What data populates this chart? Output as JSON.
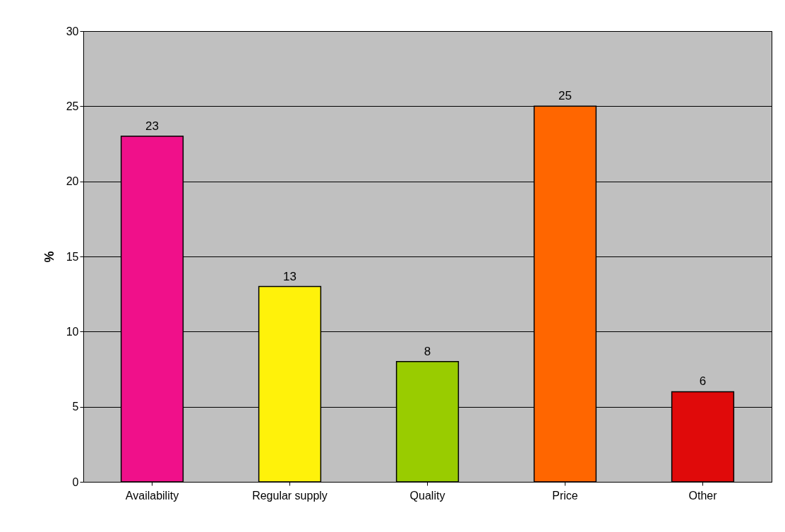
{
  "chart_data": {
    "type": "bar",
    "ylabel": "%",
    "categories": [
      "Availability",
      "Regular supply",
      "Quality",
      "Price",
      "Other"
    ],
    "values": [
      23,
      13,
      8,
      25,
      6
    ],
    "colors": [
      "#f0108a",
      "#fff20a",
      "#99cc00",
      "#ff6600",
      "#e00a0a"
    ],
    "ylim": [
      0,
      30
    ],
    "yticks": [
      0,
      5,
      10,
      15,
      20,
      25,
      30
    ],
    "grid": "y",
    "data_labels": true
  }
}
